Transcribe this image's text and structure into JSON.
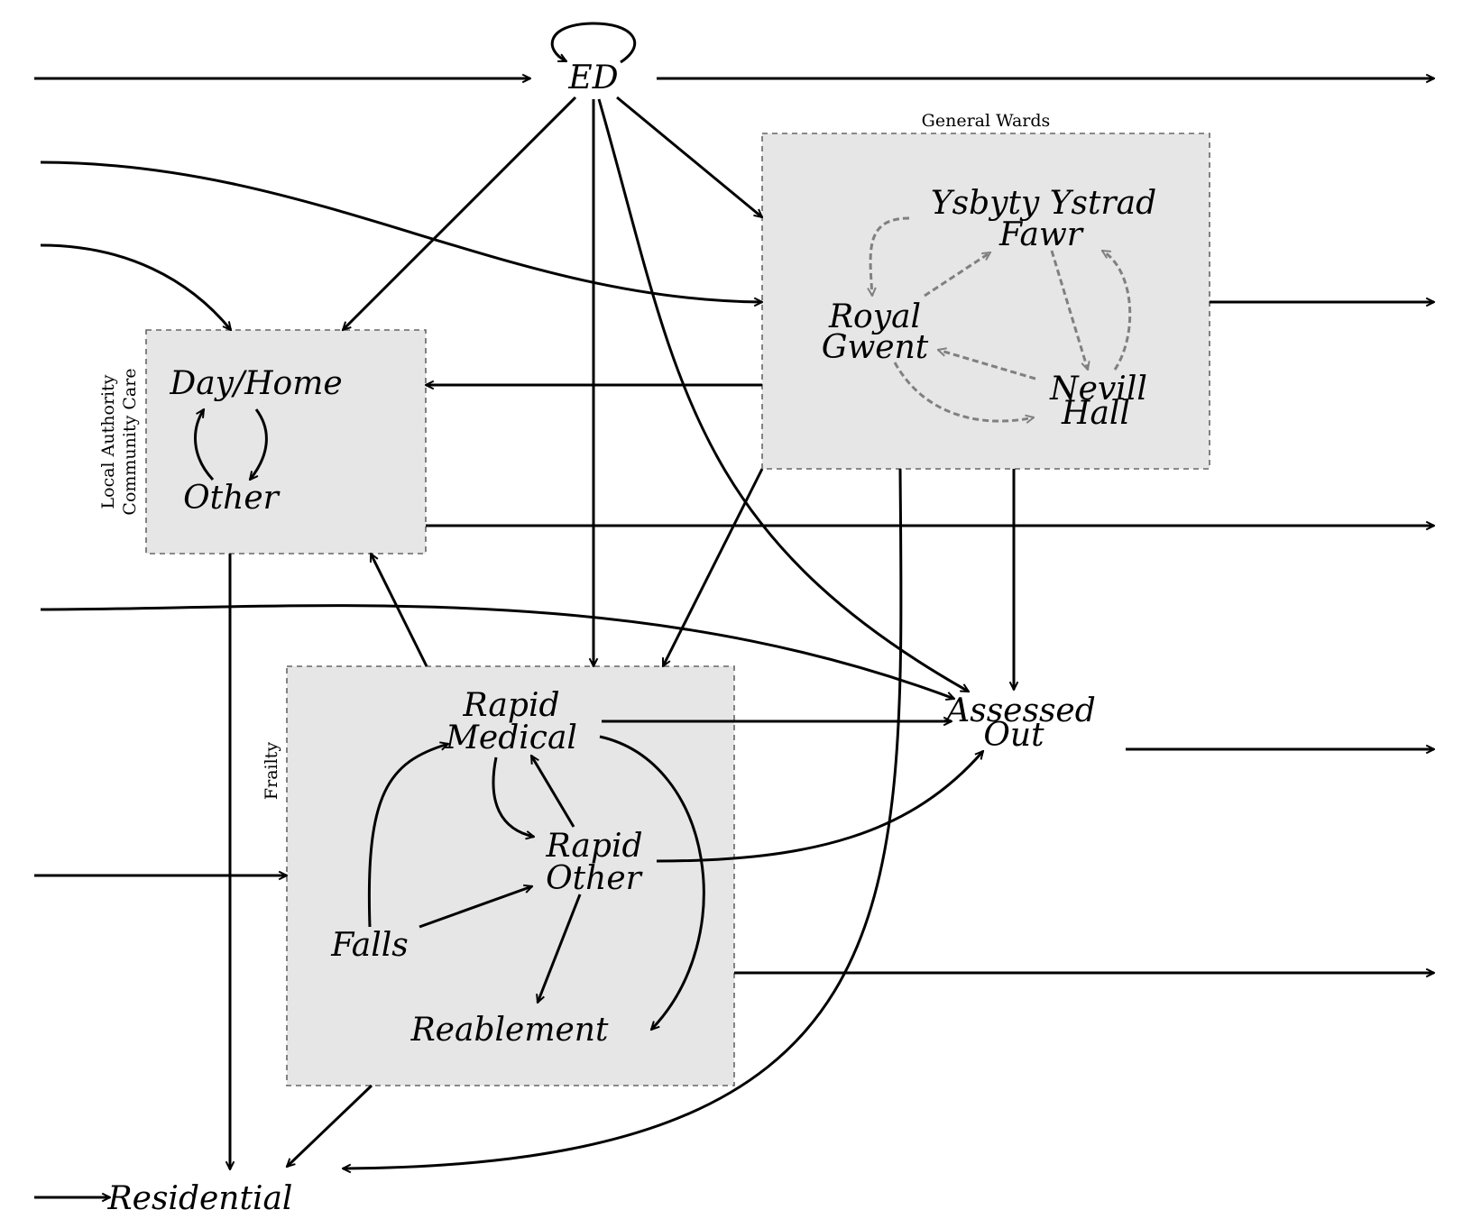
{
  "nodes": {
    "ed": "ED",
    "ysbyty_1": "Ysbyty Ystrad",
    "ysbyty_2": "Fawr",
    "royal_1": "Royal",
    "royal_2": "Gwent",
    "nevill_1": "Nevill",
    "nevill_2": "Hall",
    "dayhome": "Day/Home",
    "other": "Other",
    "rapid_medical_1": "Rapid",
    "rapid_medical_2": "Medical",
    "rapid_other_1": "Rapid",
    "rapid_other_2": "Other",
    "falls": "Falls",
    "reablement": "Reablement",
    "assessed_1": "Assessed",
    "assessed_2": "Out",
    "residential": "Residential"
  },
  "groups": {
    "general_wards": "General Wards",
    "lacc_1": "Local Authority",
    "lacc_2": "Community Care",
    "frailty": "Frailty"
  },
  "colors": {
    "box_fill": "#e6e6e6",
    "box_stroke": "#666666",
    "edge": "#000000",
    "ward_edge": "#808080"
  }
}
